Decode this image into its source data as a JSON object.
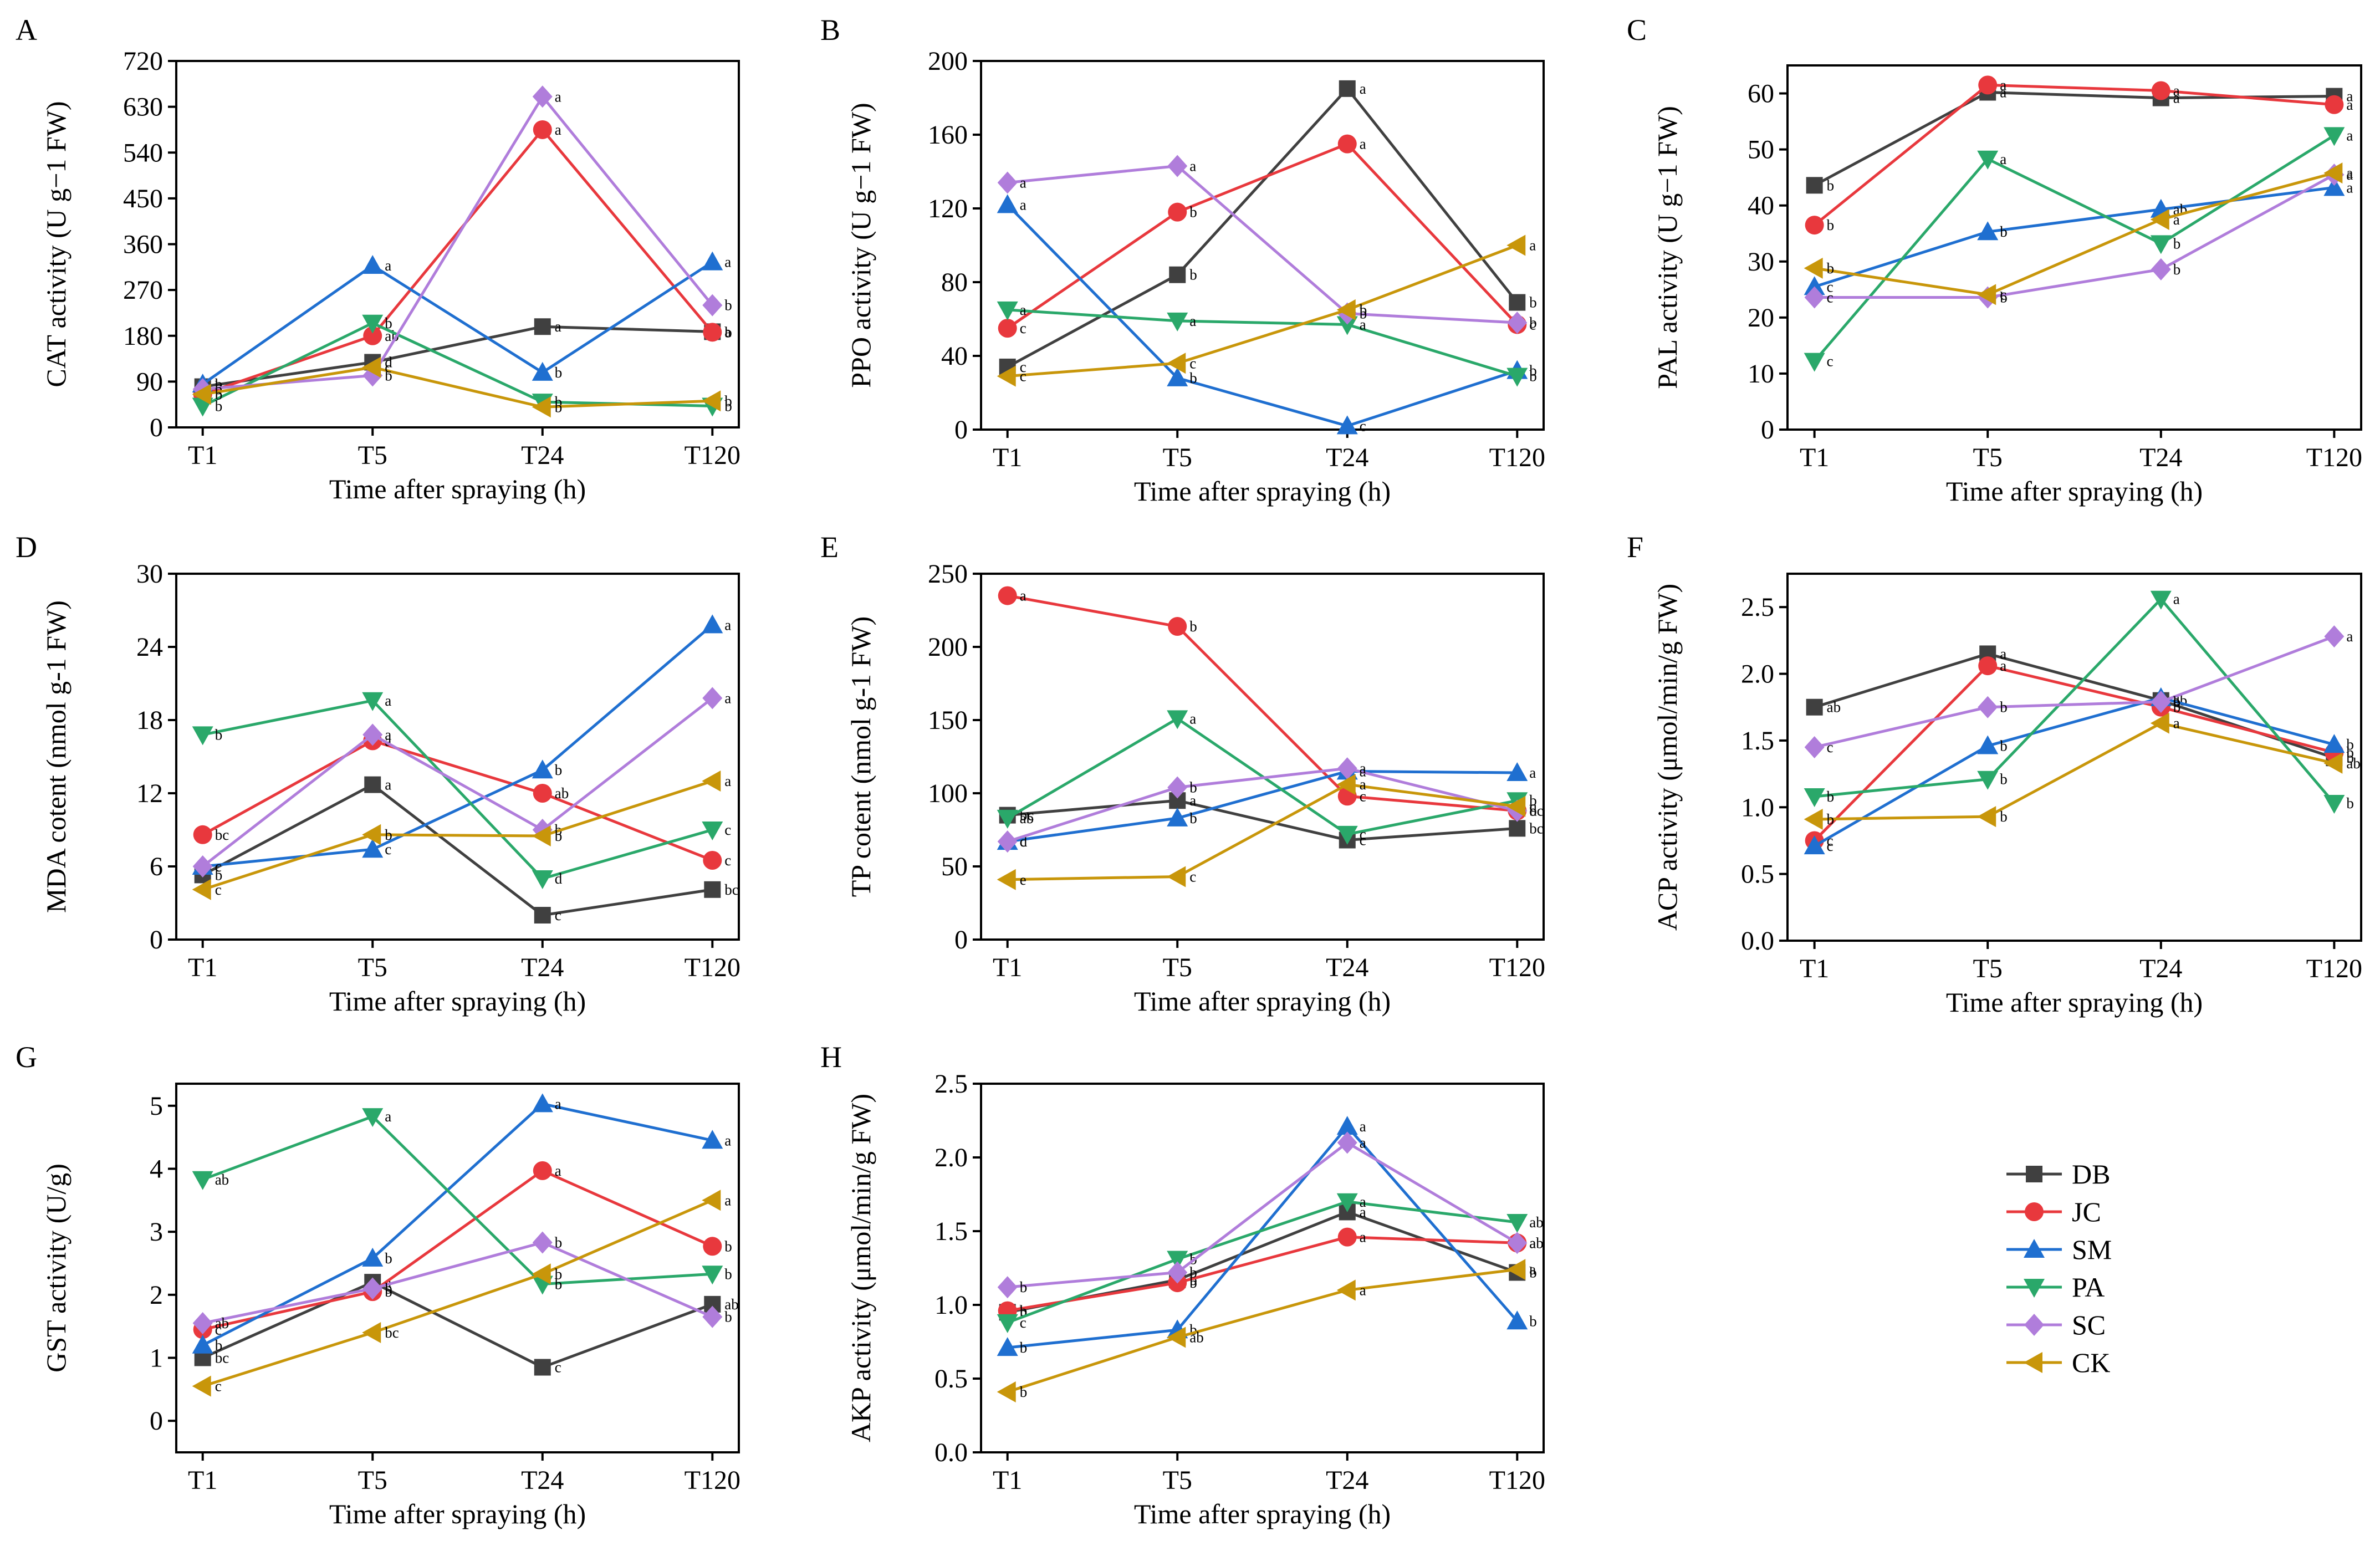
{
  "figure": {
    "legend": [
      {
        "name": "DB",
        "color": "#404040",
        "marker": "square"
      },
      {
        "name": "JC",
        "color": "#e8383d",
        "marker": "circle"
      },
      {
        "name": "SM",
        "color": "#1f6fd0",
        "marker": "triangle-up"
      },
      {
        "name": "PA",
        "color": "#2aa86a",
        "marker": "triangle-down"
      },
      {
        "name": "SC",
        "color": "#b07ddb",
        "marker": "diamond"
      },
      {
        "name": "CK",
        "color": "#c8960a",
        "marker": "triangle-left"
      }
    ]
  },
  "chart_data": [
    {
      "panel": "A",
      "type": "line",
      "xlabel": "Time after spraying (h)",
      "ylabel": "CAT activity  (U g−1 FW)",
      "categories": [
        "T1",
        "T5",
        "T24",
        "T120"
      ],
      "ylim": [
        0,
        720
      ],
      "yticks": [
        "0",
        "90",
        "180",
        "270",
        "360",
        "450",
        "540",
        "630",
        "720"
      ],
      "series": [
        {
          "name": "DB",
          "values": [
            80,
            128,
            198,
            188
          ],
          "labels": [
            "b",
            "d",
            "a",
            "a"
          ]
        },
        {
          "name": "JC",
          "values": [
            65,
            180,
            585,
            187
          ],
          "labels": [
            "b",
            "ab",
            "a",
            "b"
          ]
        },
        {
          "name": "SM",
          "values": [
            85,
            318,
            108,
            325
          ],
          "labels": [
            "b",
            "a",
            "b",
            "a"
          ]
        },
        {
          "name": "PA",
          "values": [
            42,
            205,
            50,
            42
          ],
          "labels": [
            "b",
            "b",
            "b",
            "b"
          ]
        },
        {
          "name": "SC",
          "values": [
            75,
            102,
            650,
            240
          ],
          "labels": [
            "b",
            "b",
            "a",
            "b"
          ]
        },
        {
          "name": "CK",
          "values": [
            65,
            118,
            40,
            52
          ],
          "labels": [
            "b",
            "c",
            "b",
            "b"
          ]
        }
      ]
    },
    {
      "panel": "B",
      "type": "line",
      "xlabel": "Time after spraying (h)",
      "ylabel": "PPO activity  (U g−1 FW)",
      "categories": [
        "T1",
        "T5",
        "T24",
        "T120"
      ],
      "ylim": [
        0,
        200
      ],
      "yticks": [
        "0",
        "40",
        "80",
        "120",
        "160",
        "200"
      ],
      "series": [
        {
          "name": "DB",
          "values": [
            34,
            84,
            185,
            69
          ],
          "labels": [
            "c",
            "b",
            "a",
            "b"
          ]
        },
        {
          "name": "JC",
          "values": [
            55,
            118,
            155,
            57
          ],
          "labels": [
            "c",
            "b",
            "a",
            "c"
          ]
        },
        {
          "name": "SM",
          "values": [
            122,
            28,
            2,
            32
          ],
          "labels": [
            "a",
            "b",
            "c",
            "b"
          ]
        },
        {
          "name": "PA",
          "values": [
            65,
            59,
            57,
            29
          ],
          "labels": [
            "a",
            "a",
            "a",
            "b"
          ]
        },
        {
          "name": "SC",
          "values": [
            134,
            143,
            63,
            58
          ],
          "labels": [
            "a",
            "a",
            "b",
            "b"
          ]
        },
        {
          "name": "CK",
          "values": [
            29,
            36,
            65,
            100
          ],
          "labels": [
            "c",
            "c",
            "b",
            "a"
          ]
        }
      ]
    },
    {
      "panel": "C",
      "type": "line",
      "xlabel": "Time after spraying (h)",
      "ylabel": "PAL activity  (U g−1 FW)",
      "categories": [
        "T1",
        "T5",
        "T24",
        "T120"
      ],
      "ylim": [
        0,
        65
      ],
      "yticks": [
        "0",
        "10",
        "20",
        "30",
        "40",
        "50",
        "60"
      ],
      "series": [
        {
          "name": "DB",
          "values": [
            43.6,
            60.2,
            59.2,
            59.5
          ],
          "labels": [
            "b",
            "a",
            "a",
            "a"
          ]
        },
        {
          "name": "JC",
          "values": [
            36.5,
            61.5,
            60.5,
            58.0
          ],
          "labels": [
            "b",
            "a",
            "a",
            "a"
          ]
        },
        {
          "name": "SM",
          "values": [
            25.5,
            35.3,
            39.3,
            43.2
          ],
          "labels": [
            "c",
            "b",
            "ab",
            "a"
          ]
        },
        {
          "name": "PA",
          "values": [
            12.2,
            48.3,
            33.2,
            52.5
          ],
          "labels": [
            "c",
            "a",
            "b",
            "a"
          ]
        },
        {
          "name": "SC",
          "values": [
            23.6,
            23.6,
            28.6,
            45.5
          ],
          "labels": [
            "c",
            "b",
            "b",
            "a"
          ]
        },
        {
          "name": "CK",
          "values": [
            28.8,
            24.1,
            37.5,
            45.8
          ],
          "labels": [
            "b",
            "c",
            "a",
            "a"
          ]
        }
      ]
    },
    {
      "panel": "D",
      "type": "line",
      "xlabel": "Time after spraying (h)",
      "ylabel": "MDA cotent (nmol g-1 FW)",
      "categories": [
        "T1",
        "T5",
        "T24",
        "T120"
      ],
      "ylim": [
        0,
        30
      ],
      "yticks": [
        "0",
        "6",
        "12",
        "18",
        "24",
        "30"
      ],
      "series": [
        {
          "name": "DB",
          "values": [
            5.3,
            12.7,
            2.0,
            4.1
          ],
          "labels": [
            "b",
            "a",
            "c",
            "bc"
          ]
        },
        {
          "name": "JC",
          "values": [
            8.6,
            16.3,
            12.0,
            6.5
          ],
          "labels": [
            "bc",
            "a",
            "ab",
            "c"
          ]
        },
        {
          "name": "SM",
          "values": [
            6.0,
            7.4,
            13.9,
            25.8
          ],
          "labels": [
            "c",
            "c",
            "b",
            "a"
          ]
        },
        {
          "name": "PA",
          "values": [
            16.8,
            19.6,
            5.0,
            9.0
          ],
          "labels": [
            "b",
            "a",
            "d",
            "c"
          ]
        },
        {
          "name": "SC",
          "values": [
            6.0,
            16.8,
            9.0,
            19.8
          ],
          "labels": [
            "c",
            "a",
            "b",
            "a"
          ]
        },
        {
          "name": "CK",
          "values": [
            4.1,
            8.6,
            8.5,
            13.0
          ],
          "labels": [
            "c",
            "b",
            "b",
            "a"
          ]
        }
      ]
    },
    {
      "panel": "E",
      "type": "line",
      "xlabel": "Time after spraying (h)",
      "ylabel": "TP cotent  (nmol g-1 FW)",
      "categories": [
        "T1",
        "T5",
        "T24",
        "T120"
      ],
      "ylim": [
        0,
        250
      ],
      "yticks": [
        "0",
        "50",
        "100",
        "150",
        "200",
        "250"
      ],
      "series": [
        {
          "name": "DB",
          "values": [
            85,
            95,
            68,
            76
          ],
          "labels": [
            "bc",
            "a",
            "c",
            "bc"
          ]
        },
        {
          "name": "JC",
          "values": [
            235,
            214,
            98,
            88
          ],
          "labels": [
            "a",
            "b",
            "c",
            "d"
          ]
        },
        {
          "name": "SM",
          "values": [
            67,
            83,
            115,
            114
          ],
          "labels": [
            "d",
            "b",
            "a",
            "a"
          ]
        },
        {
          "name": "PA",
          "values": [
            83,
            151,
            72,
            95
          ],
          "labels": [
            "ab",
            "a",
            "c",
            "b"
          ]
        },
        {
          "name": "SC",
          "values": [
            67,
            104,
            117,
            88
          ],
          "labels": [
            "c",
            "b",
            "a",
            "bc"
          ]
        },
        {
          "name": "CK",
          "values": [
            41,
            43,
            106,
            91
          ],
          "labels": [
            "e",
            "c",
            "a",
            "c"
          ]
        }
      ]
    },
    {
      "panel": "F",
      "type": "line",
      "xlabel": "Time after spraying (h)",
      "ylabel": "ACP activity  (μmol/min/g FW)",
      "categories": [
        "T1",
        "T5",
        "T24",
        "T120"
      ],
      "ylim": [
        0,
        2.75
      ],
      "yticks": [
        "0.0",
        "0.5",
        "1.0",
        "1.5",
        "2.0",
        "2.5"
      ],
      "series": [
        {
          "name": "DB",
          "values": [
            1.75,
            2.15,
            1.8,
            1.37
          ],
          "labels": [
            "ab",
            "a",
            "ab",
            "b"
          ]
        },
        {
          "name": "JC",
          "values": [
            0.75,
            2.06,
            1.75,
            1.41
          ],
          "labels": [
            "c",
            "a",
            "b",
            "b"
          ]
        },
        {
          "name": "SM",
          "values": [
            0.71,
            1.46,
            1.82,
            1.47
          ],
          "labels": [
            "c",
            "b",
            "a",
            "b"
          ]
        },
        {
          "name": "PA",
          "values": [
            1.08,
            1.21,
            2.56,
            1.03
          ],
          "labels": [
            "b",
            "b",
            "a",
            "b"
          ]
        },
        {
          "name": "SC",
          "values": [
            1.45,
            1.75,
            1.79,
            2.28
          ],
          "labels": [
            "c",
            "b",
            "b",
            "a"
          ]
        },
        {
          "name": "CK",
          "values": [
            0.91,
            0.93,
            1.63,
            1.33
          ],
          "labels": [
            "b",
            "b",
            "a",
            "ab"
          ]
        }
      ]
    },
    {
      "panel": "G",
      "type": "line",
      "xlabel": "Time after spraying (h)",
      "ylabel": "GST activity  (U/g)",
      "categories": [
        "T1",
        "T5",
        "T24",
        "T120"
      ],
      "ylim": [
        -0.5,
        5.35
      ],
      "yticks": [
        "0",
        "1",
        "2",
        "3",
        "4",
        "5"
      ],
      "series": [
        {
          "name": "DB",
          "values": [
            1.0,
            2.2,
            0.85,
            1.85
          ],
          "labels": [
            "bc",
            "a",
            "c",
            "ab"
          ]
        },
        {
          "name": "JC",
          "values": [
            1.45,
            2.05,
            3.97,
            2.77
          ],
          "labels": [
            "c",
            "b",
            "a",
            "b"
          ]
        },
        {
          "name": "SM",
          "values": [
            1.2,
            2.58,
            5.03,
            4.45
          ],
          "labels": [
            "b",
            "b",
            "a",
            "a"
          ]
        },
        {
          "name": "PA",
          "values": [
            3.83,
            4.83,
            2.17,
            2.33
          ],
          "labels": [
            "ab",
            "a",
            "b",
            "b"
          ]
        },
        {
          "name": "SC",
          "values": [
            1.55,
            2.1,
            2.83,
            1.65
          ],
          "labels": [
            "ab",
            "b",
            "b",
            "b"
          ]
        },
        {
          "name": "CK",
          "values": [
            0.55,
            1.4,
            2.33,
            3.5
          ],
          "labels": [
            "c",
            "bc",
            "b",
            "a"
          ]
        }
      ]
    },
    {
      "panel": "H",
      "type": "line",
      "xlabel": "Time after spraying (h)",
      "ylabel": "AKP activity  (μmol/min/g FW)",
      "categories": [
        "T1",
        "T5",
        "T24",
        "T120"
      ],
      "ylim": [
        0,
        2.5
      ],
      "yticks": [
        "0.0",
        "0.5",
        "1.0",
        "1.5",
        "2.0",
        "2.5"
      ],
      "series": [
        {
          "name": "DB",
          "values": [
            0.95,
            1.17,
            1.63,
            1.22
          ],
          "labels": [
            "b",
            "b",
            "a",
            "b"
          ]
        },
        {
          "name": "JC",
          "values": [
            0.96,
            1.15,
            1.46,
            1.42
          ],
          "labels": [
            "b",
            "b",
            "a",
            "a"
          ]
        },
        {
          "name": "SM",
          "values": [
            0.71,
            0.83,
            2.21,
            0.89
          ],
          "labels": [
            "b",
            "b",
            "a",
            "b"
          ]
        },
        {
          "name": "PA",
          "values": [
            0.88,
            1.31,
            1.7,
            1.56
          ],
          "labels": [
            "c",
            "b",
            "a",
            "ab"
          ]
        },
        {
          "name": "SC",
          "values": [
            1.12,
            1.22,
            2.1,
            1.42
          ],
          "labels": [
            "b",
            "b",
            "a",
            "ab"
          ]
        },
        {
          "name": "CK",
          "values": [
            0.41,
            0.78,
            1.1,
            1.24
          ],
          "labels": [
            "b",
            "ab",
            "a",
            "a"
          ]
        }
      ]
    }
  ]
}
